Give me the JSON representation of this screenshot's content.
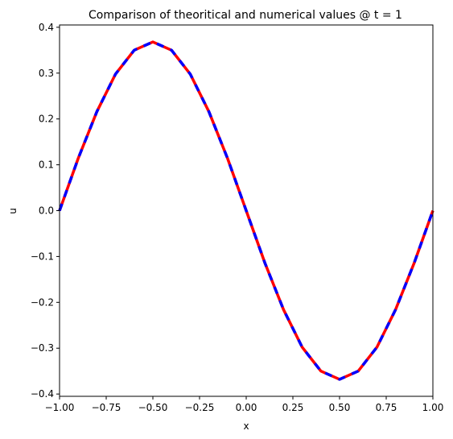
{
  "chart_data": {
    "type": "line",
    "title": "Comparison of theoritical and numerical values @ t = 1",
    "xlabel": "x",
    "ylabel": "u",
    "xlim": [
      -1.0,
      1.0
    ],
    "ylim": [
      -0.405,
      0.405
    ],
    "x_ticks": [
      -1.0,
      -0.75,
      -0.5,
      -0.25,
      0.0,
      0.25,
      0.5,
      0.75,
      1.0
    ],
    "x_tick_labels": [
      "−1.00",
      "−0.75",
      "−0.50",
      "−0.25",
      "0.00",
      "0.25",
      "0.50",
      "0.75",
      "1.00"
    ],
    "y_ticks": [
      -0.4,
      -0.3,
      -0.2,
      -0.1,
      0.0,
      0.1,
      0.2,
      0.3,
      0.4
    ],
    "y_tick_labels": [
      "−0.4",
      "−0.3",
      "−0.2",
      "−0.1",
      "0.0",
      "0.1",
      "0.2",
      "0.3",
      "0.4"
    ],
    "grid": false,
    "legend": "none",
    "series": [
      {
        "style": "solid",
        "color": "#ff0000",
        "x": [
          -1.0,
          -0.9,
          -0.8,
          -0.7,
          -0.6,
          -0.5,
          -0.4,
          -0.3,
          -0.2,
          -0.1,
          0.0,
          0.1,
          0.2,
          0.3,
          0.4,
          0.5,
          0.6,
          0.7,
          0.8,
          0.9,
          1.0
        ],
        "y": [
          0.0,
          0.114,
          0.216,
          0.298,
          0.35,
          0.368,
          0.35,
          0.298,
          0.216,
          0.114,
          0.0,
          -0.114,
          -0.216,
          -0.298,
          -0.35,
          -0.368,
          -0.35,
          -0.298,
          -0.216,
          -0.114,
          0.0
        ]
      },
      {
        "style": "dashed",
        "color": "#0000ff",
        "x": [
          -1.0,
          -0.9,
          -0.8,
          -0.7,
          -0.6,
          -0.5,
          -0.4,
          -0.3,
          -0.2,
          -0.1,
          0.0,
          0.1,
          0.2,
          0.3,
          0.4,
          0.5,
          0.6,
          0.7,
          0.8,
          0.9,
          1.0
        ],
        "y": [
          0.0,
          0.114,
          0.216,
          0.298,
          0.35,
          0.368,
          0.35,
          0.298,
          0.216,
          0.114,
          0.0,
          -0.114,
          -0.216,
          -0.298,
          -0.35,
          -0.368,
          -0.35,
          -0.298,
          -0.216,
          -0.114,
          0.0
        ]
      }
    ]
  }
}
